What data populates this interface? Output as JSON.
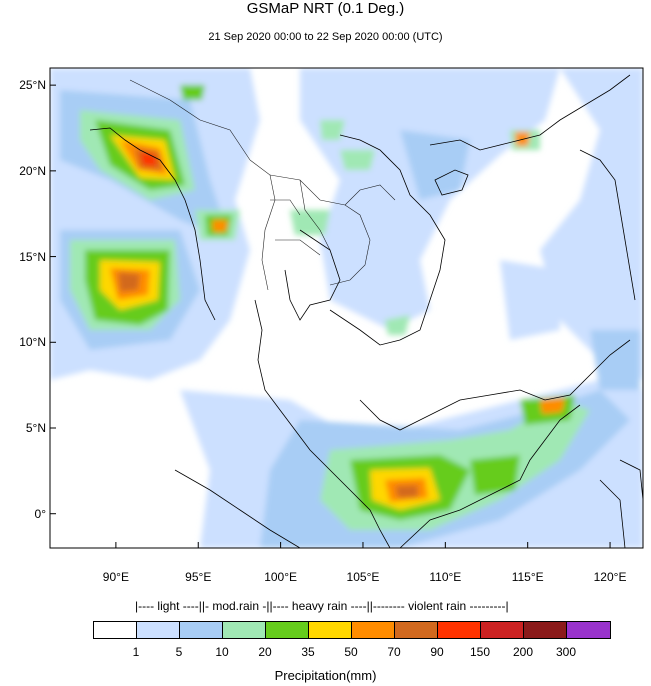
{
  "header": {
    "title": "GSMaP NRT (0.1 Deg.)",
    "subtitle": "21 Sep 2020 00:00 to 22 Sep 2020 00:00 (UTC)"
  },
  "map": {
    "lon_range": [
      86,
      122
    ],
    "lat_range": [
      -2,
      26
    ],
    "lat_ticks": [
      {
        "value": 25,
        "label": "25°N"
      },
      {
        "value": 20,
        "label": "20°N"
      },
      {
        "value": 15,
        "label": "15°N"
      },
      {
        "value": 10,
        "label": "10°N"
      },
      {
        "value": 5,
        "label": "5°N"
      },
      {
        "value": 0,
        "label": "0°"
      }
    ],
    "lon_ticks": [
      {
        "value": 90,
        "label": "90°E"
      },
      {
        "value": 95,
        "label": "95°E"
      },
      {
        "value": 100,
        "label": "100°E"
      },
      {
        "value": 105,
        "label": "105°E"
      },
      {
        "value": 110,
        "label": "110°E"
      },
      {
        "value": 115,
        "label": "115°E"
      },
      {
        "value": 120,
        "label": "120°E"
      }
    ]
  },
  "legend": {
    "categories_line": "|---- light ----||- mod.rain -||---- heavy rain ----||-------- violent rain ---------|",
    "colors": [
      "#ffffff",
      "#cce0ff",
      "#a8cdf5",
      "#a0e8b4",
      "#66cc1c",
      "#ffd700",
      "#ff8c00",
      "#d2691e",
      "#ff3300",
      "#cc2222",
      "#8b1a1a",
      "#9933cc"
    ],
    "labels": [
      "1",
      "5",
      "10",
      "20",
      "35",
      "50",
      "70",
      "90",
      "150",
      "200",
      "300"
    ],
    "unit": "Precipitation(mm)"
  }
}
